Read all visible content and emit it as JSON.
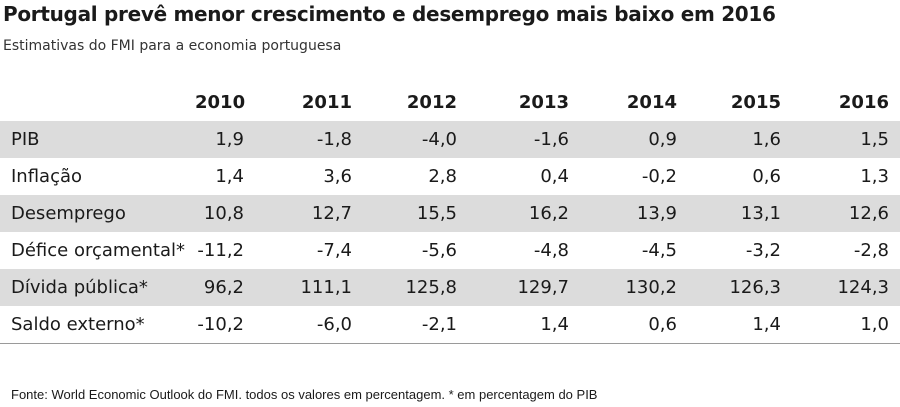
{
  "title": "Portugal prevê menor crescimento e desemprego mais baixo em 2016",
  "subtitle": "Estimativas do FMI para a economia portuguesa",
  "table": {
    "columns": [
      "",
      "2010",
      "2011",
      "2012",
      "2013",
      "2014",
      "2015",
      "2016"
    ],
    "rows": [
      {
        "label": "PIB",
        "values": [
          "1,9",
          "-1,8",
          "-4,0",
          "-1,6",
          "0,9",
          "1,6",
          "1,5"
        ]
      },
      {
        "label": "Inflação",
        "values": [
          "1,4",
          "3,6",
          "2,8",
          "0,4",
          "-0,2",
          "0,6",
          "1,3"
        ]
      },
      {
        "label": "Desemprego",
        "values": [
          "10,8",
          "12,7",
          "15,5",
          "16,2",
          "13,9",
          "13,1",
          "12,6"
        ]
      },
      {
        "label": "Défice orçamental*",
        "values": [
          "-11,2",
          "-7,4",
          "-5,6",
          "-4,8",
          "-4,5",
          "-3,2",
          "-2,8"
        ]
      },
      {
        "label": "Dívida pública*",
        "values": [
          "96,2",
          "111,1",
          "125,8",
          "129,7",
          "130,2",
          "126,3",
          "124,3"
        ]
      },
      {
        "label": "Saldo externo*",
        "values": [
          "-10,2",
          "-6,0",
          "-2,1",
          "1,4",
          "0,6",
          "1,4",
          "1,0"
        ]
      }
    ]
  },
  "source": "Fonte: World Economic Outlook do FMI. todos os valores em percentagem. * em percentagem do PIB",
  "colors": {
    "row_shade": "#dcdcdc",
    "text": "#1a1a1a",
    "background": "#ffffff"
  }
}
